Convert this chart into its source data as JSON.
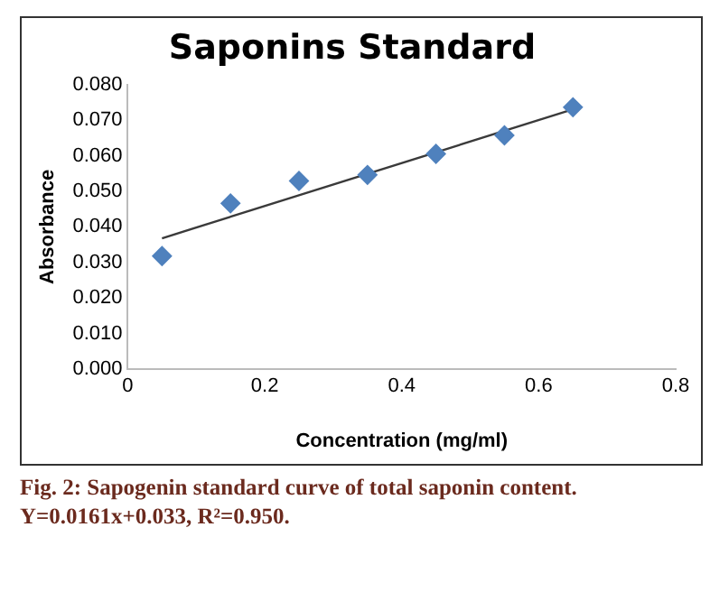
{
  "chart_data": {
    "type": "scatter",
    "title": "Saponins Standard",
    "xlabel": "Concentration (mg/ml)",
    "ylabel": "Absorbance",
    "x": [
      0.05,
      0.15,
      0.25,
      0.35,
      0.45,
      0.55,
      0.65
    ],
    "series": [
      {
        "color": "#4f81bd",
        "values": [
          0.0318,
          0.0466,
          0.0529,
          0.0546,
          0.0605,
          0.0657,
          0.0736
        ],
        "marker": "diamond"
      },
      {
        "type": "line",
        "color": "#3a3a3a",
        "x": [
          0.05,
          0.65
        ],
        "values": [
          0.0368,
          0.073
        ],
        "marker": "none",
        "line_style": "solid"
      }
    ],
    "xlim": [
      0,
      0.8
    ],
    "xticks": [
      0,
      0.2,
      0.4,
      0.6,
      0.8
    ],
    "ylim": [
      0,
      0.08
    ],
    "yticks": [
      {
        "value": 0,
        "label": "0.000"
      },
      {
        "value": 0.01,
        "label": "0.010"
      },
      {
        "value": 0.02,
        "label": "0.020"
      },
      {
        "value": 0.03,
        "label": "0.030"
      },
      {
        "value": 0.04,
        "label": "0.040"
      },
      {
        "value": 0.05,
        "label": "0.050"
      },
      {
        "value": 0.06,
        "label": "0.060"
      },
      {
        "value": 0.07,
        "label": "0.070"
      },
      {
        "value": 0.08,
        "label": "0.080"
      }
    ],
    "grid": false,
    "legend": false,
    "annotations": [
      "Fig. 2: Sapogenin standard curve of total saponin content.",
      "Y=0.0161x+0.033, R²=0.950."
    ]
  }
}
